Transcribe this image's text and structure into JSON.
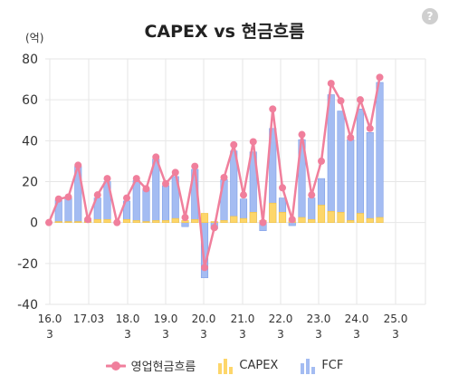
{
  "chart_data": {
    "type": "bar",
    "title": "CAPEX vs 현금흐름",
    "unit_label": "(억)",
    "ylim": [
      -40,
      80
    ],
    "y_ticks": [
      "80",
      "60",
      "40",
      "20",
      "0",
      "-20",
      "-40"
    ],
    "x_tick_labels": [
      {
        "top": "16.0",
        "bottom": "3"
      },
      {
        "top": "17.03",
        "bottom": ""
      },
      {
        "top": "18.0",
        "bottom": "3"
      },
      {
        "top": "19.0",
        "bottom": "3"
      },
      {
        "top": "20.0",
        "bottom": "3"
      },
      {
        "top": "21.0",
        "bottom": "3"
      },
      {
        "top": "22.0",
        "bottom": "3"
      },
      {
        "top": "23.0",
        "bottom": "3"
      },
      {
        "top": "24.0",
        "bottom": "3"
      },
      {
        "top": "25.0",
        "bottom": "3"
      }
    ],
    "grid": true,
    "legend_position": "bottom",
    "series": [
      {
        "name": "영업현금흐름",
        "type": "line",
        "color": "#f07f9c",
        "values": [
          0,
          11.5,
          12.5,
          28,
          1.5,
          13.5,
          21.5,
          0,
          12,
          21.5,
          16.5,
          32,
          19,
          24.5,
          2.5,
          27.5,
          -22,
          -2.5,
          22,
          38,
          13.5,
          39.5,
          0,
          55.5,
          17,
          1.5,
          43,
          13.5,
          30,
          68,
          59.5,
          41.5,
          60,
          46,
          71
        ]
      },
      {
        "name": "CAPEX",
        "type": "bar",
        "color": "#fdd66a",
        "values": [
          0,
          0.5,
          0.5,
          0.5,
          0.5,
          1.5,
          1.5,
          0,
          1.5,
          1,
          0.5,
          1,
          1,
          2,
          1,
          1.5,
          4.5,
          0.5,
          1,
          3,
          2,
          5,
          1,
          9.5,
          5,
          1,
          2.5,
          1.5,
          8.5,
          5.5,
          5,
          1,
          4.5,
          2,
          2.5
        ]
      },
      {
        "name": "FCF",
        "type": "bar",
        "color": "#a4bcf2",
        "values": [
          0,
          11,
          12,
          27.5,
          1,
          12,
          20,
          0,
          10.5,
          20.5,
          16,
          31,
          18,
          22.5,
          -2,
          26,
          -27,
          -3,
          21,
          35,
          11.5,
          34.5,
          -4,
          46,
          12,
          -1.5,
          40.5,
          12,
          21.5,
          62.5,
          54.5,
          40.5,
          55.5,
          44,
          68.5
        ]
      }
    ]
  }
}
